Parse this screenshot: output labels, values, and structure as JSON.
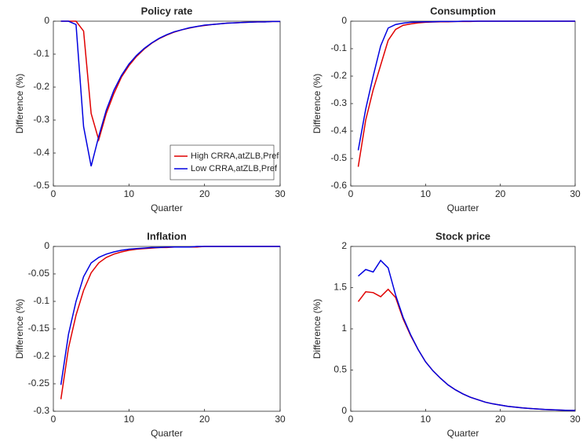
{
  "chart_data": [
    {
      "type": "line",
      "title": "Policy rate",
      "xlabel": "Quarter",
      "ylabel": "Difference (%)",
      "x": [
        1,
        2,
        3,
        4,
        5,
        6,
        7,
        8,
        9,
        10,
        11,
        12,
        13,
        14,
        15,
        16,
        17,
        18,
        19,
        20,
        21,
        22,
        23,
        24,
        25,
        26,
        27,
        28,
        29,
        30
      ],
      "xlim": [
        0,
        30
      ],
      "xticks": [
        0,
        10,
        20,
        30
      ],
      "ylim": [
        -0.5,
        0
      ],
      "yticks": [
        -0.5,
        -0.4,
        -0.3,
        -0.2,
        -0.1,
        0
      ],
      "legend": "lower right",
      "series": [
        {
          "name": "High CRRA,atZLB,Pref",
          "color": "#e00000",
          "values": [
            0,
            0,
            0,
            -0.03,
            -0.28,
            -0.36,
            -0.28,
            -0.22,
            -0.17,
            -0.135,
            -0.107,
            -0.085,
            -0.067,
            -0.053,
            -0.042,
            -0.033,
            -0.026,
            -0.021,
            -0.016,
            -0.013,
            -0.01,
            -0.008,
            -0.006,
            -0.005,
            -0.004,
            -0.003,
            -0.002,
            -0.002,
            -0.001,
            -0.001
          ]
        },
        {
          "name": "Low CRRA,atZLB,Pref",
          "color": "#0000e0",
          "values": [
            0,
            0,
            -0.01,
            -0.32,
            -0.44,
            -0.35,
            -0.27,
            -0.21,
            -0.165,
            -0.13,
            -0.104,
            -0.083,
            -0.066,
            -0.052,
            -0.041,
            -0.032,
            -0.026,
            -0.02,
            -0.016,
            -0.012,
            -0.01,
            -0.008,
            -0.006,
            -0.005,
            -0.004,
            -0.003,
            -0.002,
            -0.002,
            -0.001,
            -0.001
          ]
        }
      ]
    },
    {
      "type": "line",
      "title": "Consumption",
      "xlabel": "Quarter",
      "ylabel": "Difference (%)",
      "x": [
        1,
        2,
        3,
        4,
        5,
        6,
        7,
        8,
        9,
        10,
        11,
        12,
        13,
        14,
        15,
        16,
        17,
        18,
        19,
        20,
        21,
        22,
        23,
        24,
        25,
        26,
        27,
        28,
        29,
        30
      ],
      "xlim": [
        0,
        30
      ],
      "xticks": [
        0,
        10,
        20,
        30
      ],
      "ylim": [
        -0.6,
        0
      ],
      "yticks": [
        -0.6,
        -0.5,
        -0.4,
        -0.3,
        -0.2,
        -0.1,
        0
      ],
      "series": [
        {
          "color": "#e00000",
          "values": [
            -0.53,
            -0.36,
            -0.25,
            -0.16,
            -0.07,
            -0.03,
            -0.015,
            -0.01,
            -0.006,
            -0.004,
            -0.003,
            -0.002,
            -0.002,
            -0.001,
            -0.001,
            -0.001,
            0,
            0,
            0,
            0,
            0,
            0,
            0,
            0,
            0,
            0,
            0,
            0,
            0,
            0
          ]
        },
        {
          "color": "#0000e0",
          "values": [
            -0.47,
            -0.32,
            -0.2,
            -0.09,
            -0.025,
            -0.012,
            -0.007,
            -0.004,
            -0.003,
            -0.002,
            -0.002,
            -0.001,
            -0.001,
            -0.001,
            0,
            0,
            0,
            0,
            0,
            0,
            0,
            0,
            0,
            0,
            0,
            0,
            0,
            0,
            0,
            0
          ]
        }
      ]
    },
    {
      "type": "line",
      "title": "Inflation",
      "xlabel": "Quarter",
      "ylabel": "Difference (%)",
      "x": [
        1,
        2,
        3,
        4,
        5,
        6,
        7,
        8,
        9,
        10,
        11,
        12,
        13,
        14,
        15,
        16,
        17,
        18,
        19,
        20,
        21,
        22,
        23,
        24,
        25,
        26,
        27,
        28,
        29,
        30
      ],
      "xlim": [
        0,
        30
      ],
      "xticks": [
        0,
        10,
        20,
        30
      ],
      "ylim": [
        -0.3,
        0
      ],
      "yticks": [
        -0.3,
        -0.25,
        -0.2,
        -0.15,
        -0.1,
        -0.05,
        0
      ],
      "series": [
        {
          "color": "#e00000",
          "values": [
            -0.278,
            -0.185,
            -0.125,
            -0.08,
            -0.048,
            -0.03,
            -0.02,
            -0.014,
            -0.01,
            -0.007,
            -0.005,
            -0.004,
            -0.003,
            -0.002,
            -0.002,
            -0.001,
            -0.001,
            -0.001,
            -0.001,
            0,
            0,
            0,
            0,
            0,
            0,
            0,
            0,
            0,
            0,
            0
          ]
        },
        {
          "color": "#0000e0",
          "values": [
            -0.252,
            -0.16,
            -0.1,
            -0.055,
            -0.03,
            -0.02,
            -0.014,
            -0.01,
            -0.007,
            -0.005,
            -0.004,
            -0.003,
            -0.002,
            -0.002,
            -0.001,
            -0.001,
            -0.001,
            -0.001,
            0,
            0,
            0,
            0,
            0,
            0,
            0,
            0,
            0,
            0,
            0,
            0
          ]
        }
      ]
    },
    {
      "type": "line",
      "title": "Stock price",
      "xlabel": "Quarter",
      "ylabel": "Difference (%)",
      "x": [
        1,
        2,
        3,
        4,
        5,
        6,
        7,
        8,
        9,
        10,
        11,
        12,
        13,
        14,
        15,
        16,
        17,
        18,
        19,
        20,
        21,
        22,
        23,
        24,
        25,
        26,
        27,
        28,
        29,
        30
      ],
      "xlim": [
        0,
        30
      ],
      "xticks": [
        0,
        10,
        20,
        30
      ],
      "ylim": [
        0,
        2
      ],
      "yticks": [
        0,
        0.5,
        1,
        1.5,
        2
      ],
      "series": [
        {
          "color": "#e00000",
          "values": [
            1.33,
            1.45,
            1.44,
            1.39,
            1.48,
            1.38,
            1.12,
            0.92,
            0.75,
            0.6,
            0.49,
            0.4,
            0.32,
            0.26,
            0.21,
            0.17,
            0.14,
            0.11,
            0.09,
            0.075,
            0.06,
            0.05,
            0.04,
            0.033,
            0.027,
            0.022,
            0.018,
            0.014,
            0.011,
            0.009
          ]
        },
        {
          "color": "#0000e0",
          "values": [
            1.64,
            1.72,
            1.69,
            1.83,
            1.74,
            1.41,
            1.14,
            0.93,
            0.75,
            0.6,
            0.49,
            0.4,
            0.32,
            0.26,
            0.21,
            0.17,
            0.14,
            0.11,
            0.09,
            0.075,
            0.06,
            0.05,
            0.04,
            0.033,
            0.027,
            0.022,
            0.018,
            0.014,
            0.011,
            0.009
          ]
        }
      ]
    }
  ]
}
